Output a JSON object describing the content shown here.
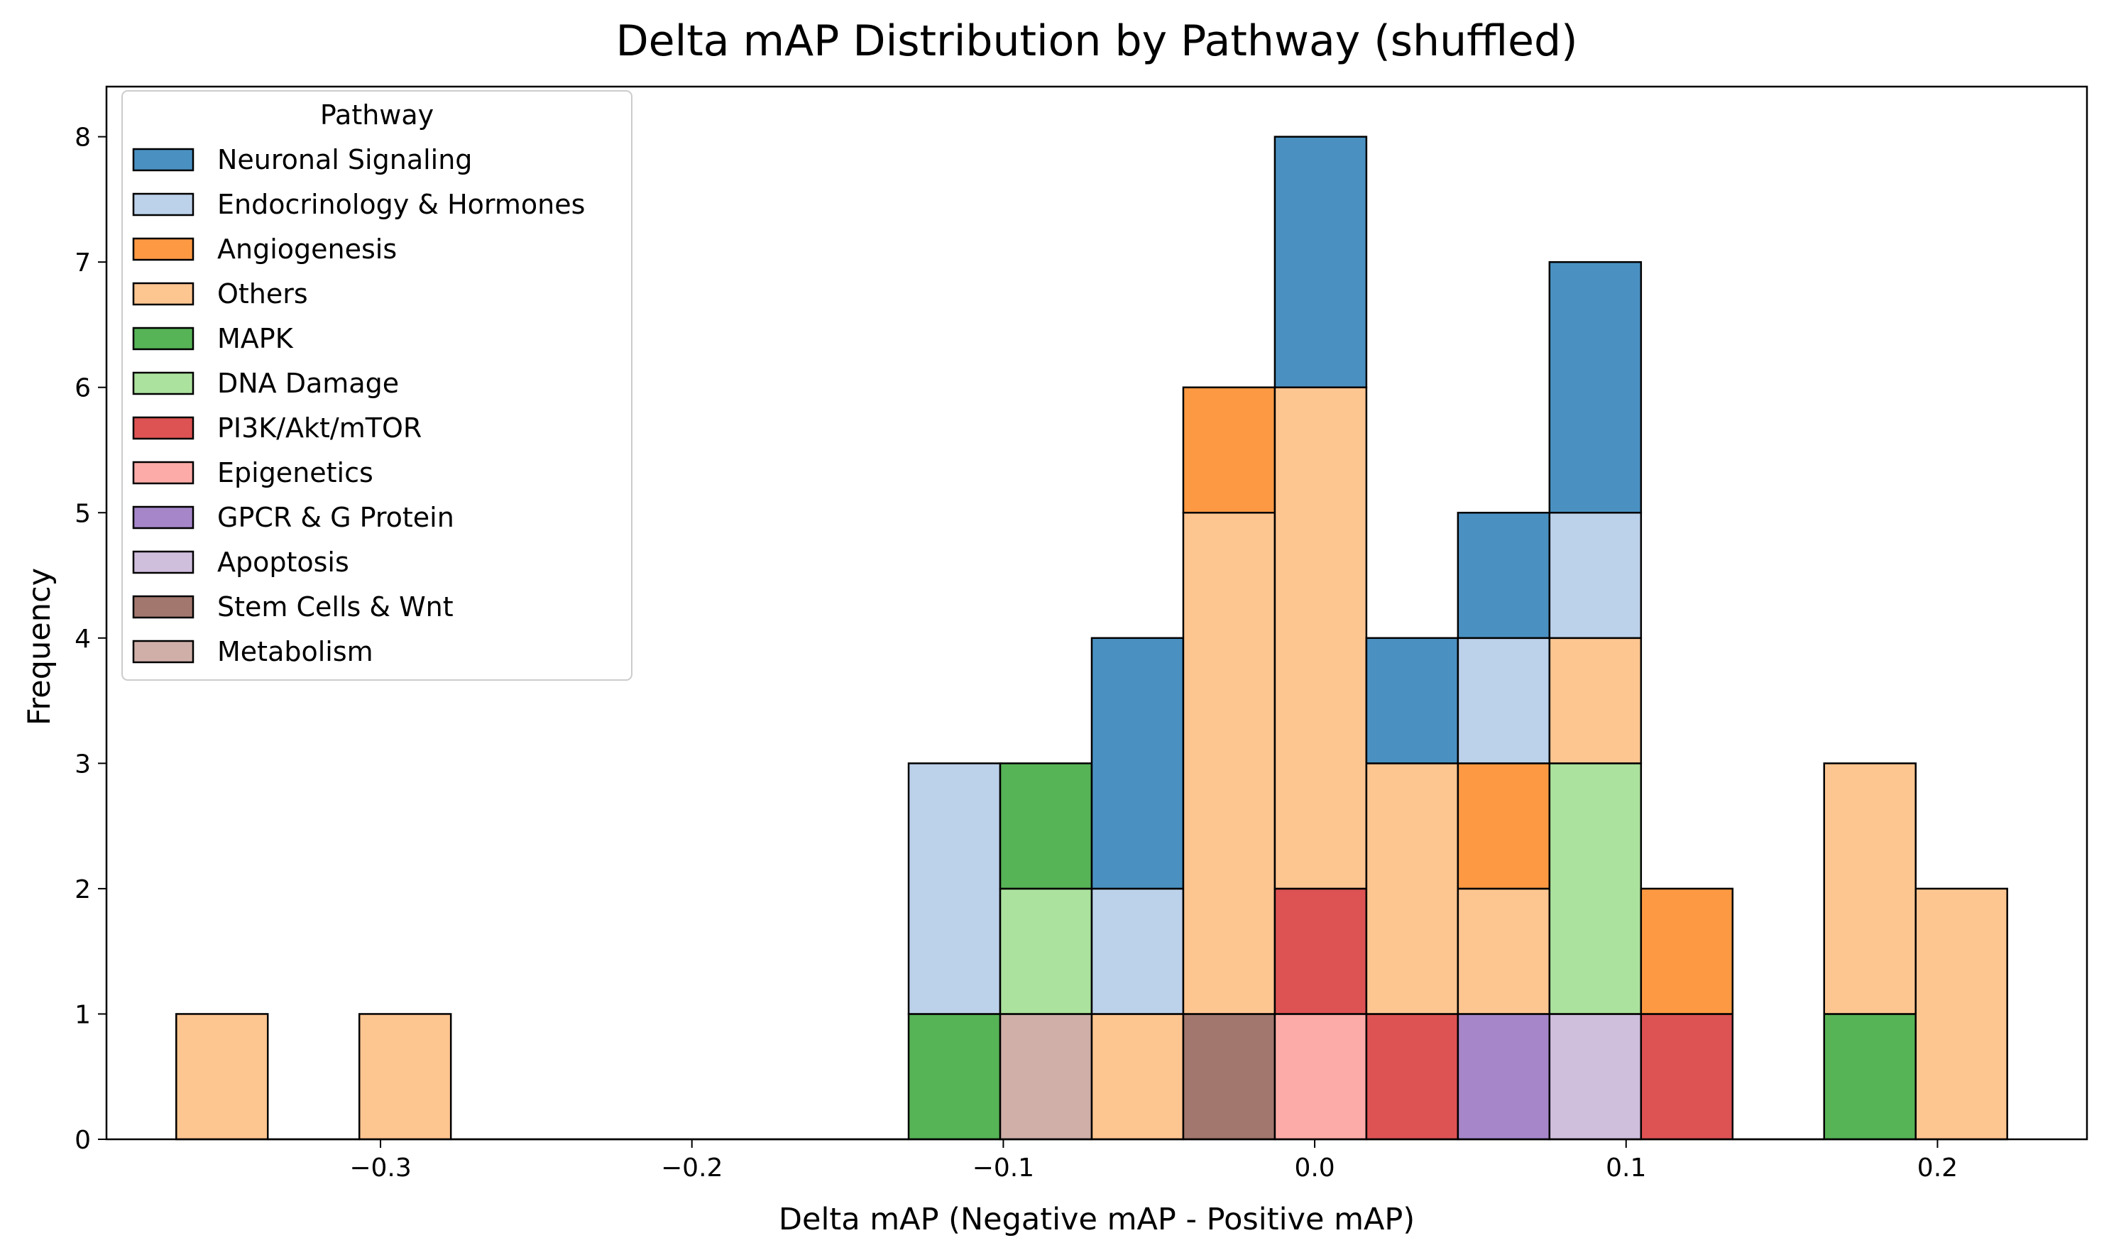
{
  "chart_data": {
    "type": "histogram-stacked",
    "title": "Delta mAP Distribution by Pathway (shuffled)",
    "xlabel": "Delta mAP (Negative mAP - Positive mAP)",
    "ylabel": "Frequency",
    "xlim": [
      -0.388,
      0.248
    ],
    "ylim": [
      0,
      8.4
    ],
    "xticks": [
      -0.3,
      -0.2,
      -0.1,
      0.0,
      0.1,
      0.2
    ],
    "xtick_labels": [
      "−0.3",
      "−0.2",
      "−0.1",
      "0.0",
      "0.1",
      "0.2"
    ],
    "yticks": [
      0,
      1,
      2,
      3,
      4,
      5,
      6,
      7,
      8
    ],
    "ytick_labels": [
      "0",
      "1",
      "2",
      "3",
      "4",
      "5",
      "6",
      "7",
      "8"
    ],
    "bin_edges": [
      -0.3656,
      -0.3362,
      -0.3068,
      -0.2774,
      -0.248,
      -0.2186,
      -0.1892,
      -0.1598,
      -0.1304,
      -0.101,
      -0.0716,
      -0.0422,
      -0.0128,
      0.0166,
      0.046,
      0.0754,
      0.1048,
      0.1342,
      0.1636,
      0.193,
      0.2224
    ],
    "legend": {
      "title": "Pathway",
      "position": "upper-left",
      "entries": [
        {
          "name": "Neuronal Signaling",
          "color": "#4a91c2"
        },
        {
          "name": "Endocrinology & Hormones",
          "color": "#bcd1ea"
        },
        {
          "name": "Angiogenesis",
          "color": "#fd9942"
        },
        {
          "name": "Others",
          "color": "#fdc590"
        },
        {
          "name": "MAPK",
          "color": "#56b356"
        },
        {
          "name": "DNA Damage",
          "color": "#abe29d"
        },
        {
          "name": "PI3K/Akt/mTOR",
          "color": "#dd5253"
        },
        {
          "name": "Epigenetics",
          "color": "#fdaba8"
        },
        {
          "name": "GPCR & G Protein",
          "color": "#a686c9"
        },
        {
          "name": "Apoptosis",
          "color": "#d0bedd"
        },
        {
          "name": "Stem Cells &  Wnt",
          "color": "#a2776d"
        },
        {
          "name": "Metabolism",
          "color": "#cfafa8"
        }
      ]
    },
    "stacks": [
      [
        {
          "series": "Others",
          "count": 1
        }
      ],
      [],
      [
        {
          "series": "Others",
          "count": 1
        }
      ],
      [],
      [],
      [],
      [],
      [],
      [
        {
          "series": "MAPK",
          "count": 1
        },
        {
          "series": "Endocrinology & Hormones",
          "count": 2
        }
      ],
      [
        {
          "series": "Metabolism",
          "count": 1
        },
        {
          "series": "DNA Damage",
          "count": 1
        },
        {
          "series": "MAPK",
          "count": 1
        }
      ],
      [
        {
          "series": "Others",
          "count": 1
        },
        {
          "series": "Endocrinology & Hormones",
          "count": 1
        },
        {
          "series": "Neuronal Signaling",
          "count": 2
        }
      ],
      [
        {
          "series": "Stem Cells &  Wnt",
          "count": 1
        },
        {
          "series": "Others",
          "count": 4
        },
        {
          "series": "Angiogenesis",
          "count": 1
        }
      ],
      [
        {
          "series": "Epigenetics",
          "count": 1
        },
        {
          "series": "PI3K/Akt/mTOR",
          "count": 1
        },
        {
          "series": "Others",
          "count": 4
        },
        {
          "series": "Neuronal Signaling",
          "count": 2
        }
      ],
      [
        {
          "series": "PI3K/Akt/mTOR",
          "count": 1
        },
        {
          "series": "Others",
          "count": 2
        },
        {
          "series": "Neuronal Signaling",
          "count": 1
        }
      ],
      [
        {
          "series": "GPCR & G Protein",
          "count": 1
        },
        {
          "series": "Others",
          "count": 1
        },
        {
          "series": "Angiogenesis",
          "count": 1
        },
        {
          "series": "Endocrinology & Hormones",
          "count": 1
        },
        {
          "series": "Neuronal Signaling",
          "count": 1
        }
      ],
      [
        {
          "series": "Apoptosis",
          "count": 1
        },
        {
          "series": "DNA Damage",
          "count": 2
        },
        {
          "series": "Others",
          "count": 1
        },
        {
          "series": "Endocrinology & Hormones",
          "count": 1
        },
        {
          "series": "Neuronal Signaling",
          "count": 2
        }
      ],
      [
        {
          "series": "PI3K/Akt/mTOR",
          "count": 1
        },
        {
          "series": "Angiogenesis",
          "count": 1
        }
      ],
      [],
      [
        {
          "series": "MAPK",
          "count": 1
        },
        {
          "series": "Others",
          "count": 2
        }
      ],
      [
        {
          "series": "Others",
          "count": 2
        }
      ]
    ]
  }
}
